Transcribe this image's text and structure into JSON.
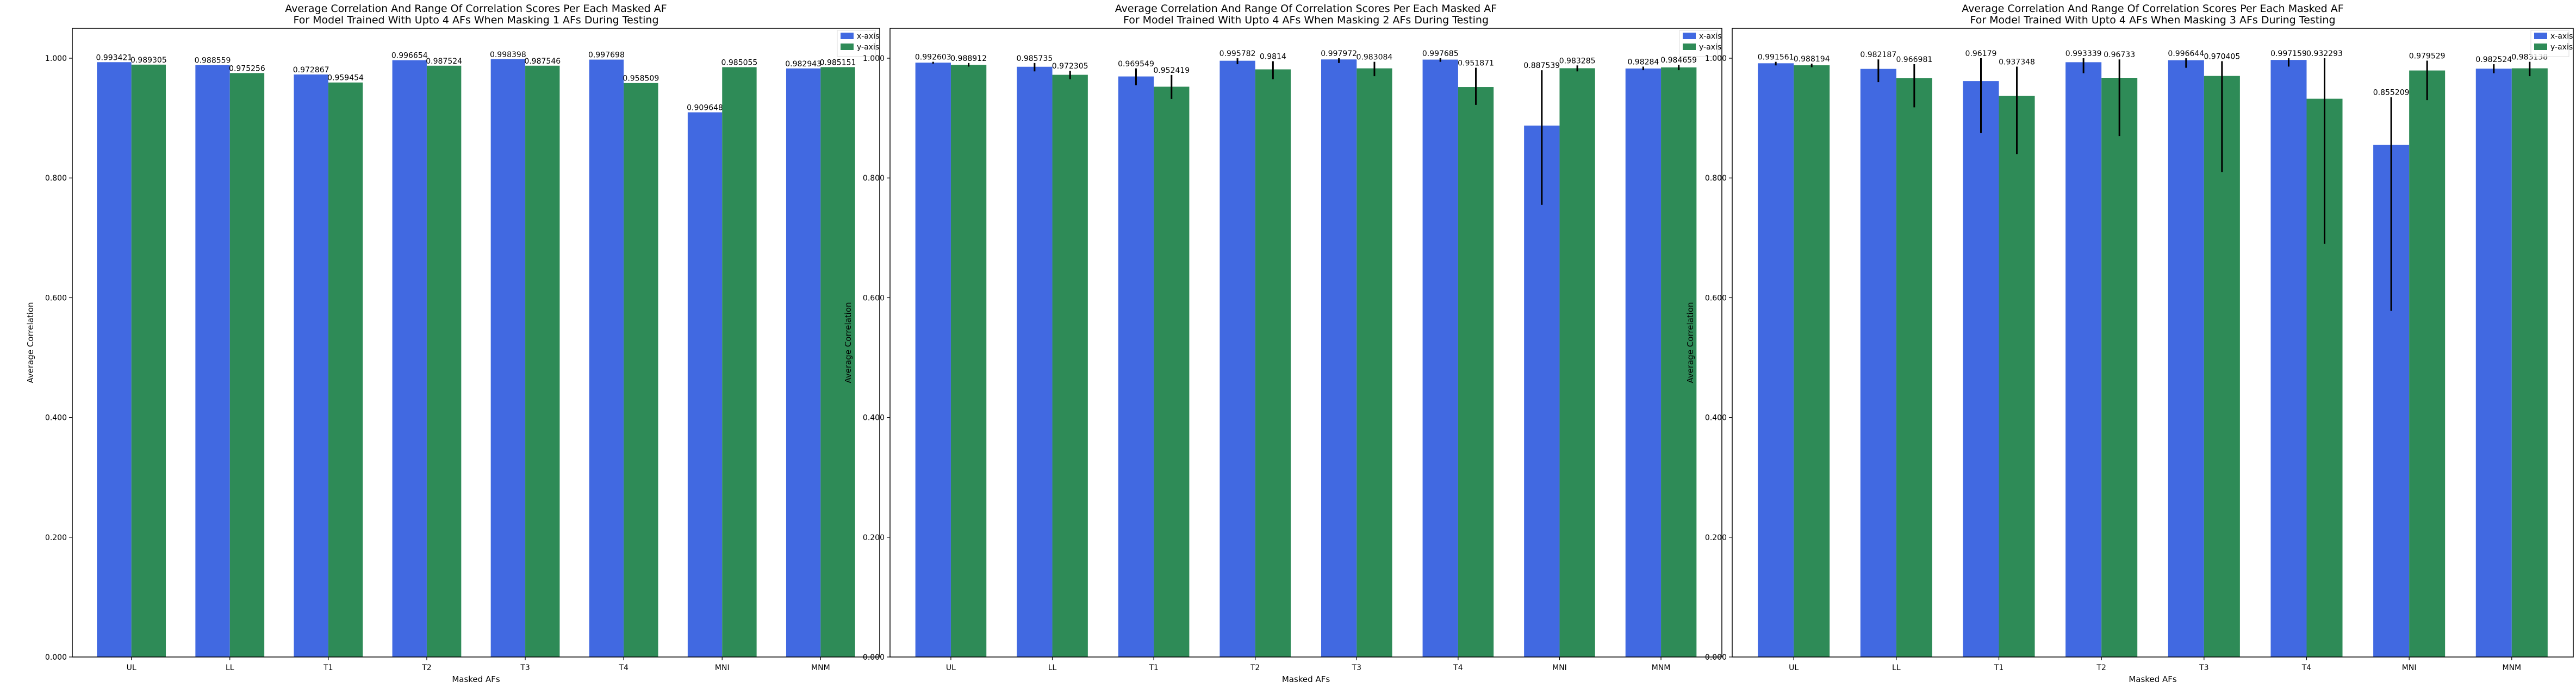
{
  "chart_data": [
    {
      "type": "bar",
      "title": "Average Correlation And Range Of Correlation Scores Per Each Masked AF\nFor Model Trained With Upto 4 AFs When Masking 1 AFs During Testing",
      "xlabel": "Masked AFs",
      "ylabel": "Average Correlation",
      "categories": [
        "UL",
        "LL",
        "T1",
        "T2",
        "T3",
        "T4",
        "MNI",
        "MNM"
      ],
      "ylim": [
        0,
        1.05
      ],
      "yticks": [
        "0.000",
        "0.200",
        "0.400",
        "0.600",
        "0.800",
        "1.000"
      ],
      "legend_position": "upper right",
      "grid": false,
      "series": [
        {
          "name": "x-axis",
          "color": "#4169e1",
          "values": [
            0.993421,
            0.988559,
            0.972867,
            0.996654,
            0.998398,
            0.997698,
            0.909648,
            0.982943
          ],
          "labels": [
            "0.993421",
            "0.988559",
            "0.972867",
            "0.996654",
            "0.998398",
            "0.997698",
            "0.909648",
            "0.982943"
          ],
          "error_low": [
            0.993421,
            0.988559,
            0.972867,
            0.996654,
            0.998398,
            0.997698,
            0.909648,
            0.982943
          ],
          "error_high": [
            0.993421,
            0.988559,
            0.972867,
            0.996654,
            0.998398,
            0.997698,
            0.909648,
            0.982943
          ]
        },
        {
          "name": "y-axis",
          "color": "#2e8b57",
          "values": [
            0.989305,
            0.975256,
            0.959454,
            0.987524,
            0.987546,
            0.958509,
            0.985055,
            0.985151
          ],
          "labels": [
            "0.989305",
            "0.975256",
            "0.959454",
            "0.987524",
            "0.987546",
            "0.958509",
            "0.985055",
            "0.985151"
          ],
          "error_low": [
            0.989305,
            0.975256,
            0.959454,
            0.987524,
            0.987546,
            0.958509,
            0.985055,
            0.985151
          ],
          "error_high": [
            0.989305,
            0.975256,
            0.959454,
            0.987524,
            0.987546,
            0.958509,
            0.985055,
            0.985151
          ]
        }
      ]
    },
    {
      "type": "bar",
      "title": "Average Correlation And Range Of Correlation Scores Per Each Masked AF\nFor Model Trained With Upto 4 AFs When Masking 2 AFs During Testing",
      "xlabel": "Masked AFs",
      "ylabel": "Average Correlation",
      "categories": [
        "UL",
        "LL",
        "T1",
        "T2",
        "T3",
        "T4",
        "MNI",
        "MNM"
      ],
      "ylim": [
        0,
        1.05
      ],
      "yticks": [
        "0.000",
        "0.200",
        "0.400",
        "0.600",
        "0.800",
        "1.000"
      ],
      "legend_position": "upper right",
      "grid": false,
      "series": [
        {
          "name": "x-axis",
          "color": "#4169e1",
          "values": [
            0.992603,
            0.985735,
            0.969549,
            0.995782,
            0.997972,
            0.997685,
            0.887539,
            0.98284
          ],
          "labels": [
            "0.992603",
            "0.985735",
            "0.969549",
            "0.995782",
            "0.997972",
            "0.997685",
            "0.887539",
            "0.98284"
          ],
          "error_low": [
            0.991,
            0.978,
            0.955,
            0.99,
            0.992,
            0.994,
            0.755,
            0.98
          ],
          "error_high": [
            0.994,
            0.992,
            0.983,
            1.0,
            1.0,
            1.0,
            0.98,
            0.986
          ]
        },
        {
          "name": "y-axis",
          "color": "#2e8b57",
          "values": [
            0.988912,
            0.972305,
            0.952419,
            0.9814,
            0.983084,
            0.951871,
            0.983285,
            0.984659
          ],
          "labels": [
            "0.988912",
            "0.972305",
            "0.952419",
            "0.9814",
            "0.983084",
            "0.951871",
            "0.983285",
            "0.984659"
          ],
          "error_low": [
            0.986,
            0.965,
            0.932,
            0.965,
            0.97,
            0.922,
            0.978,
            0.98
          ],
          "error_high": [
            0.992,
            0.979,
            0.972,
            0.995,
            0.994,
            0.984,
            0.988,
            0.989
          ]
        }
      ]
    },
    {
      "type": "bar",
      "title": "Average Correlation And Range Of Correlation Scores Per Each Masked AF\nFor Model Trained With Upto 4 AFs When Masking 3 AFs During Testing",
      "xlabel": "Masked AFs",
      "ylabel": "Average Correlation",
      "categories": [
        "UL",
        "LL",
        "T1",
        "T2",
        "T3",
        "T4",
        "MNI",
        "MNM"
      ],
      "ylim": [
        0,
        1.05
      ],
      "yticks": [
        "0.000",
        "0.200",
        "0.400",
        "0.600",
        "0.800",
        "1.000"
      ],
      "legend_position": "upper right",
      "grid": false,
      "series": [
        {
          "name": "x-axis",
          "color": "#4169e1",
          "values": [
            0.991561,
            0.982187,
            0.96179,
            0.993339,
            0.996644,
            0.997159,
            0.855209,
            0.982524
          ],
          "labels": [
            "0.991561",
            "0.982187",
            "0.96179",
            "0.993339",
            "0.996644",
            "0.997159",
            "0.855209",
            "0.982524"
          ],
          "error_low": [
            0.988,
            0.96,
            0.875,
            0.975,
            0.984,
            0.986,
            0.578,
            0.975
          ],
          "error_high": [
            0.994,
            0.998,
            1.0,
            1.0,
            1.0,
            1.0,
            0.935,
            0.99
          ]
        },
        {
          "name": "y-axis",
          "color": "#2e8b57",
          "values": [
            0.988194,
            0.966981,
            0.937348,
            0.96733,
            0.970405,
            0.932293,
            0.979529,
            0.983138
          ],
          "labels": [
            "0.988194",
            "0.966981",
            "0.937348",
            "0.96733",
            "0.970405",
            "0.932293",
            "0.979529",
            "0.983138"
          ],
          "error_low": [
            0.985,
            0.918,
            0.84,
            0.87,
            0.81,
            0.69,
            0.93,
            0.97
          ],
          "error_high": [
            0.991,
            0.99,
            0.986,
            0.998,
            0.995,
            1.0,
            0.996,
            0.994
          ]
        }
      ]
    }
  ]
}
